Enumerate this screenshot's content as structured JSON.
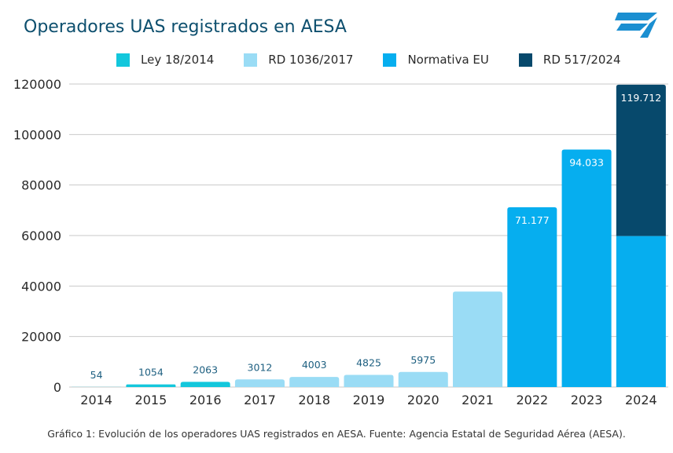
{
  "title": "Operadores UAS registrados en AESA",
  "caption": "Gráfico 1: Evolución de los operadores UAS registrados en AESA. Fuente: Agencia Estatal de Seguridad Aérea (AESA).",
  "logo_icon": "aesa-logo-icon",
  "colors": {
    "ley_18_2014": "#13c7dc",
    "rd_1036_2017": "#9adcf5",
    "normativa_eu": "#06aeef",
    "rd_517_2024": "#07496c",
    "label_dark": "#1d5f80",
    "label_light": "#ffffff",
    "grid": "#c9c9c9",
    "logo": "#1b8fd1"
  },
  "legend": [
    {
      "label": "Ley 18/2014",
      "color": "#13c7dc"
    },
    {
      "label": "RD 1036/2017",
      "color": "#9adcf5"
    },
    {
      "label": "Normativa EU",
      "color": "#06aeef"
    },
    {
      "label": "RD 517/2024",
      "color": "#07496c"
    }
  ],
  "chart_data": {
    "type": "bar",
    "stacked": true,
    "categories": [
      "2014",
      "2015",
      "2016",
      "2017",
      "2018",
      "2019",
      "2020",
      "2021",
      "2022",
      "2023",
      "2024"
    ],
    "series": [
      {
        "name": "Ley 18/2014",
        "color": "#13c7dc",
        "values": [
          54,
          1054,
          2063,
          0,
          0,
          0,
          0,
          0,
          0,
          0,
          0
        ]
      },
      {
        "name": "RD 1036/2017",
        "color": "#9adcf5",
        "values": [
          0,
          0,
          0,
          3012,
          4003,
          4825,
          5975,
          37800,
          0,
          0,
          0
        ]
      },
      {
        "name": "Normativa EU",
        "color": "#06aeef",
        "values": [
          0,
          0,
          0,
          0,
          0,
          0,
          0,
          0,
          71177,
          94033,
          59800
        ]
      },
      {
        "name": "RD 517/2024",
        "color": "#07496c",
        "values": [
          0,
          0,
          0,
          0,
          0,
          0,
          0,
          0,
          0,
          0,
          59912
        ]
      }
    ],
    "data_labels": [
      "54",
      "1054",
      "2063",
      "3012",
      "4003",
      "4825",
      "5975",
      "",
      "71.177",
      "94.033",
      "119.712"
    ],
    "yticks": [
      "0",
      "20000",
      "40000",
      "60000",
      "80000",
      "100000",
      "120000"
    ],
    "ylim": [
      0,
      120000
    ],
    "grid": true,
    "legend_position": "top"
  }
}
